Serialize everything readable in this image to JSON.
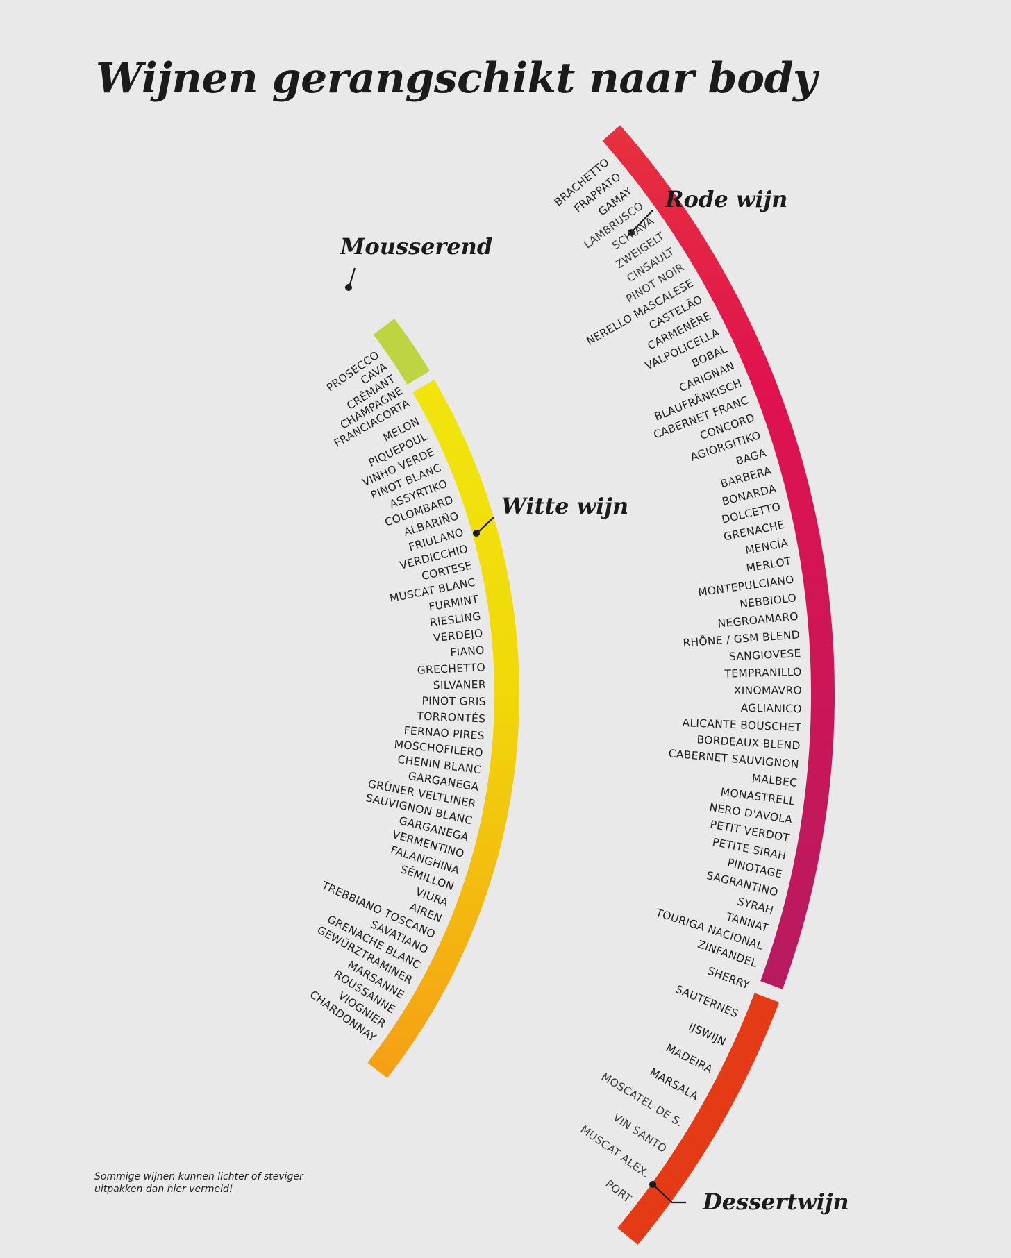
{
  "title": "Wijnen gerangschikt naar body",
  "footnote": "Sommige wijnen kunnen lichter of steviger uitpakken dan hier vermeld!",
  "colors": {
    "background": "#e9e9e9",
    "mousserend": "#bfd441",
    "white_start": "#f1e50c",
    "white_end": "#f5a014",
    "red_start": "#e7303e",
    "red_mid": "#e0124f",
    "red_end": "#b81a60",
    "dessert": "#e53a16",
    "text": "#1b1b1b"
  },
  "categories": {
    "mousserend": {
      "label": "Mousserend",
      "wines": [
        "PROSECCO",
        "CAVA",
        "CRÉMANT",
        "CHAMPAGNE",
        "FRANCIACORTA"
      ]
    },
    "witte_wijn": {
      "label": "Witte wijn",
      "wines": [
        "MELON",
        "PIQUEPOUL",
        "VINHO VERDE",
        "PINOT BLANC",
        "ASSYRTIKO",
        "COLOMBARD",
        "ALBARIÑO",
        "FRIULANO",
        "VERDICCHIO",
        "CORTESE",
        "MUSCAT BLANC",
        "FURMINT",
        "RIESLING",
        "VERDEJO",
        "FIANO",
        "GRECHETTO",
        "SILVANER",
        "PINOT GRIS",
        "TORRONTÉS",
        "FERNAO PIRES",
        "MOSCHOFILERO",
        "CHENIN BLANC",
        "GARGANEGA",
        "GRÜNER VELTLINER",
        "SAUVIGNON BLANC",
        "GARGANEGA",
        "VERMENTINO",
        "FALANGHINA",
        "SÉMILLON",
        "VIURA",
        "AIREN",
        "TREBBIANO TOSCANO",
        "SAVATIANO",
        "GRENACHE BLANC",
        "GEWÜRZTRAMINER",
        "MARSANNE",
        "ROUSSANNE",
        "VIOGNIER",
        "CHARDONNAY"
      ]
    },
    "rode_wijn": {
      "label": "Rode wijn",
      "wines": [
        "BRACHETTO",
        "FRAPPATO",
        "GAMAY",
        "LAMBRUSCO",
        "SCHIAVA",
        "ZWEIGELT",
        "CINSAULT",
        "PINOT NOIR",
        "NERELLO MASCALESE",
        "CASTELÃO",
        "CARMÉNÈRE",
        "VALPOLICELLA",
        "BOBAL",
        "CARIGNAN",
        "BLAUFRÄNKISCH",
        "CABERNET FRANC",
        "CONCORD",
        "AGIORGITIKO",
        "BAGA",
        "BARBERA",
        "BONARDA",
        "DOLCETTO",
        "GRENACHE",
        "MENCÍA",
        "MERLOT",
        "MONTEPULCIANO",
        "NEBBIOLO",
        "NEGROAMARO",
        "RHÔNE / GSM BLEND",
        "SANGIOVESE",
        "TEMPRANILLO",
        "XINOMAVRO",
        "AGLIANICO",
        "ALICANTE BOUSCHET",
        "BORDEAUX BLEND",
        "CABERNET SAUVIGNON",
        "MALBEC",
        "MONASTRELL",
        "NERO D'AVOLA",
        "PETIT VERDOT",
        "PETITE SIRAH",
        "PINOTAGE",
        "SAGRANTINO",
        "SYRAH",
        "TANNAT",
        "TOURIGA NACIONAL",
        "ZINFANDEL"
      ]
    },
    "dessertwijn": {
      "label": "Dessertwijn",
      "wines": [
        "SHERRY",
        "SAUTERNES",
        "IJSWIJN",
        "MADEIRA",
        "MARSALA",
        "MOSCATEL DE S.",
        "VIN SANTO",
        "MUSCAT ALEX.",
        "PORT"
      ]
    }
  }
}
